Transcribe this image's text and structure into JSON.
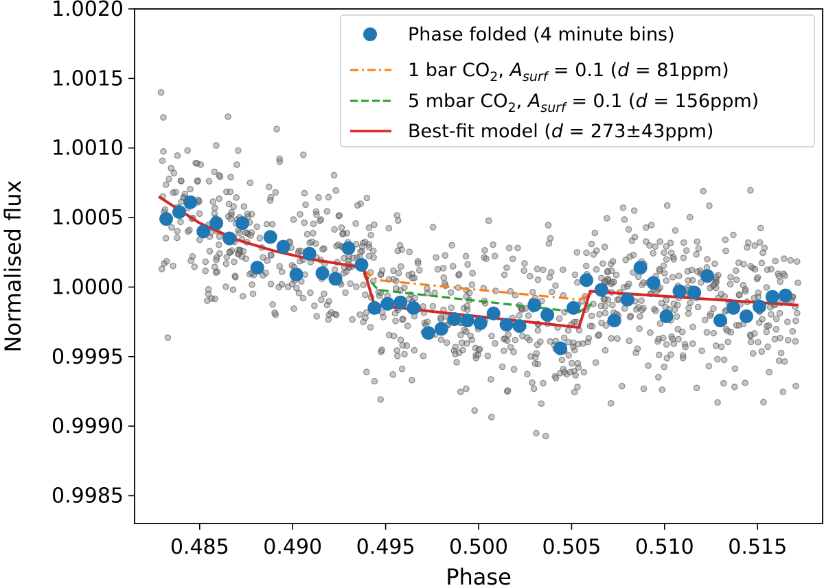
{
  "chart_data": {
    "type": "scatter",
    "title": "",
    "xlabel": "Phase",
    "ylabel": "Normalised flux",
    "xlim": [
      0.4815,
      0.5185
    ],
    "ylim": [
      0.9983,
      1.002
    ],
    "grid": false,
    "legend_position": "top-right",
    "xticks": [
      0.485,
      0.49,
      0.495,
      0.5,
      0.505,
      0.51,
      0.515
    ],
    "xtick_labels": [
      "0.485",
      "0.490",
      "0.495",
      "0.500",
      "0.505",
      "0.510",
      "0.515"
    ],
    "yticks": [
      0.9985,
      0.999,
      0.9995,
      1.0,
      1.0005,
      1.001,
      1.0015,
      1.002
    ],
    "ytick_labels": [
      "0.9985",
      "0.9990",
      "0.9995",
      "1.0000",
      "1.0005",
      "1.0010",
      "1.0015",
      "1.0020"
    ],
    "colors": {
      "raw": "#808080",
      "binned": "#1f77b4",
      "model_1bar": "#ff7f0e",
      "model_5mbar": "#2ca02c",
      "bestfit": "#d62728"
    },
    "raw_points": {
      "label": "",
      "description_in_legend": false,
      "x_range": [
        0.4829,
        0.5172
      ],
      "count": 900,
      "y_spread": 0.00045
    },
    "binned": {
      "name": "Phase folded (4 minute bins)",
      "x": [
        0.4832,
        0.4839,
        0.4845,
        0.4852,
        0.4859,
        0.4866,
        0.4873,
        0.4881,
        0.4888,
        0.4895,
        0.4902,
        0.4909,
        0.4916,
        0.4923,
        0.493,
        0.4937,
        0.4944,
        0.4951,
        0.4958,
        0.4965,
        0.4973,
        0.498,
        0.4987,
        0.4994,
        0.5001,
        0.5008,
        0.5015,
        0.5022,
        0.503,
        0.5037,
        0.5044,
        0.5051,
        0.5058,
        0.5066,
        0.5073,
        0.508,
        0.5087,
        0.5094,
        0.5101,
        0.5108,
        0.5116,
        0.5123,
        0.513,
        0.5137,
        0.5144,
        0.5151,
        0.5158,
        0.5165
      ],
      "y": [
        1.00049,
        1.00054,
        1.00061,
        1.0004,
        1.00046,
        1.00035,
        1.00046,
        1.00014,
        1.00036,
        1.00029,
        1.00009,
        1.00024,
        1.0001,
        1.00006,
        1.00028,
        1.00016,
        0.99985,
        0.99988,
        0.99989,
        0.99985,
        0.99967,
        0.9997,
        0.99977,
        0.99976,
        0.99974,
        0.99981,
        0.99973,
        0.99972,
        0.99987,
        0.9998,
        0.99956,
        0.99985,
        1.00005,
        0.99998,
        0.99976,
        0.99991,
        1.00014,
        1.00003,
        0.99979,
        0.99997,
        0.99996,
        1.00008,
        0.99976,
        0.99985,
        0.99979,
        0.99986,
        0.99993,
        0.99994
      ]
    },
    "series": [
      {
        "name": "1 bar CO",
        "name_sub": "2",
        "name_mid": ", ",
        "name_var": "A",
        "name_var_sub": "surf",
        "name_rest": " = 0.1 (",
        "name_d": "d",
        "name_tail": " = 81ppm)",
        "style": "dashdot",
        "x": [
          0.4938,
          0.4946,
          0.5054,
          0.5061
        ],
        "y": [
          1.00012,
          1.00005,
          0.99991,
          0.99995
        ]
      },
      {
        "name": "5 mbar CO",
        "name_sub": "2",
        "name_mid": ", ",
        "name_var": "A",
        "name_var_sub": "surf",
        "name_rest": " = 0.1 (",
        "name_d": "d",
        "name_tail": " = 156ppm)",
        "style": "dashed",
        "x": [
          0.4938,
          0.4946,
          0.5054,
          0.5061
        ],
        "y": [
          1.0001,
          0.99998,
          0.99982,
          0.99988
        ]
      },
      {
        "name": "Best-fit model (",
        "name_d": "d",
        "name_tail": " = 273±43ppm)",
        "style": "solid",
        "x": [
          0.4828,
          0.485,
          0.487,
          0.489,
          0.491,
          0.4938,
          0.4944,
          0.5054,
          0.506,
          0.5172
        ],
        "y": [
          1.00065,
          1.00046,
          1.00034,
          1.00026,
          1.0002,
          1.00014,
          0.99987,
          0.99971,
          0.99997,
          0.99987
        ]
      }
    ]
  }
}
